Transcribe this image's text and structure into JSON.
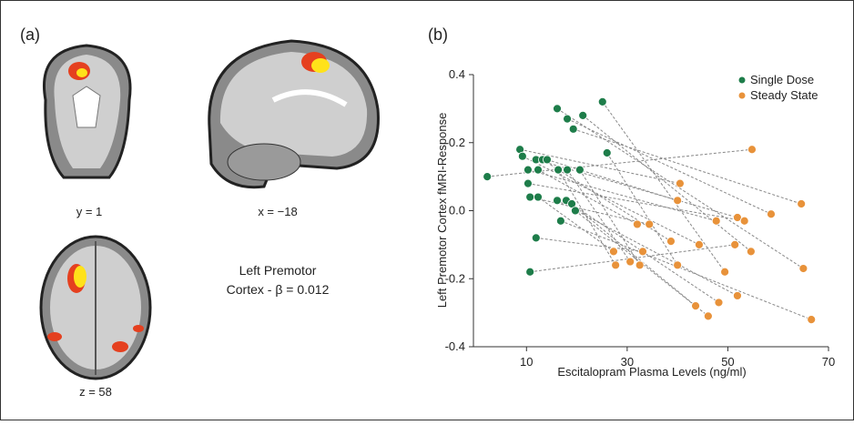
{
  "panel_a": {
    "label": "(a)",
    "captions": [
      "y = 1",
      "x = −18",
      "z = 58"
    ],
    "annotation": [
      "Left Premotor",
      "Cortex - β = 0.012"
    ]
  },
  "chart_data": {
    "type": "scatter",
    "label": "(b)",
    "x_label": "Escitalopram Plasma Levels (ng/ml)",
    "y_label": "Left Premotor Cortex fMRI-Response",
    "xlim": [
      0,
      70
    ],
    "ylim": [
      -0.4,
      0.4
    ],
    "xticks": [
      10,
      30,
      50,
      70
    ],
    "yticks": [
      0.4,
      0.2,
      {
        "value": 0,
        "label": "0.0"
      },
      -0.2,
      -0.4
    ],
    "legend": "top-right",
    "paired": true,
    "series": [
      {
        "name": "Single Dose",
        "color": "#1e7d4a",
        "x": [
          2.2,
          8.7,
          9.2,
          10.3,
          11.9,
          13.2,
          14.1,
          12.3,
          10.3,
          10.7,
          12.3,
          11.9,
          10.7,
          16.1,
          18.1,
          19.3,
          21.2,
          25.1,
          26.0,
          16.3,
          18.1,
          20.6,
          16.1,
          17.9,
          19.0,
          19.7,
          16.8
        ],
        "values": [
          0.1,
          0.18,
          0.16,
          0.12,
          0.15,
          0.15,
          0.15,
          0.12,
          0.08,
          0.04,
          0.04,
          -0.08,
          -0.18,
          0.3,
          0.27,
          0.24,
          0.28,
          0.32,
          0.17,
          0.12,
          0.12,
          0.12,
          0.03,
          0.03,
          0.02,
          0.0,
          -0.03
        ]
      },
      {
        "name": "Steady State",
        "color": "#e8923a",
        "x": [
          54.8,
          40.5,
          44.3,
          47.7,
          51.9,
          38.7,
          40.0,
          32.0,
          53.3,
          34.4,
          27.3,
          33.1,
          51.4,
          65.0,
          58.6,
          64.6,
          54.6,
          49.4,
          40.0,
          27.7,
          30.6,
          32.5,
          51.9,
          48.2,
          43.6,
          46.1,
          66.6
        ],
        "values": [
          0.18,
          0.08,
          -0.1,
          -0.03,
          -0.02,
          -0.09,
          0.03,
          -0.04,
          -0.03,
          -0.04,
          -0.12,
          -0.12,
          -0.1,
          -0.17,
          -0.01,
          0.02,
          -0.12,
          -0.18,
          -0.16,
          -0.16,
          -0.15,
          -0.16,
          -0.25,
          -0.27,
          -0.28,
          -0.31,
          -0.32
        ]
      }
    ]
  }
}
